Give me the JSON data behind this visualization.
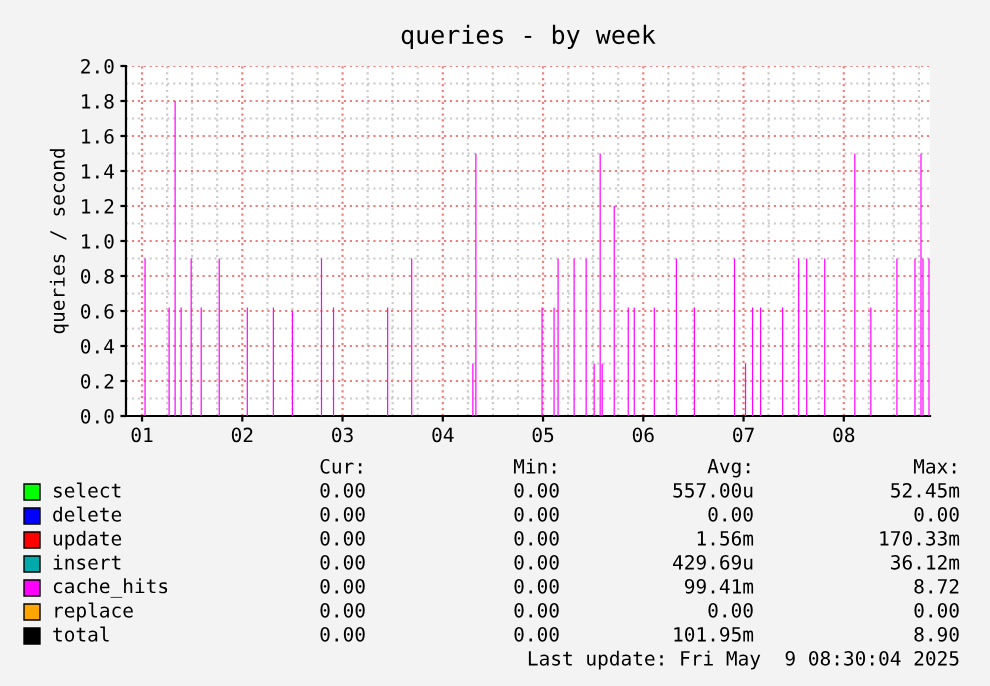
{
  "chart_data": {
    "type": "bar",
    "title": "queries - by week",
    "ylabel": "queries / second",
    "xlim": [
      0.84,
      8.86
    ],
    "xticks": [
      {
        "value": 1,
        "label": "01"
      },
      {
        "value": 2,
        "label": "02"
      },
      {
        "value": 3,
        "label": "03"
      },
      {
        "value": 4,
        "label": "04"
      },
      {
        "value": 5,
        "label": "05"
      },
      {
        "value": 6,
        "label": "06"
      },
      {
        "value": 7,
        "label": "07"
      },
      {
        "value": 8,
        "label": "08"
      }
    ],
    "ylim": [
      0,
      2.0
    ],
    "yticks": [
      {
        "value": 0,
        "label": "0.0"
      },
      {
        "value": 0.2,
        "label": "0.2"
      },
      {
        "value": 0.4,
        "label": "0.4"
      },
      {
        "value": 0.6,
        "label": "0.6"
      },
      {
        "value": 0.8,
        "label": "0.8"
      },
      {
        "value": 1.0,
        "label": "1.0"
      },
      {
        "value": 1.2,
        "label": "1.2"
      },
      {
        "value": 1.4,
        "label": "1.4"
      },
      {
        "value": 1.6,
        "label": "1.6"
      },
      {
        "value": 1.8,
        "label": "1.8"
      },
      {
        "value": 2.0,
        "label": "2.0"
      }
    ],
    "grid": true,
    "legend": "bottom",
    "series": [
      {
        "name": "select",
        "color": "#00ff00"
      },
      {
        "name": "delete",
        "color": "#0000ff"
      },
      {
        "name": "update",
        "color": "#ff0000"
      },
      {
        "name": "insert",
        "color": "#00aaaa"
      },
      {
        "name": "cache_hits",
        "color": "#ff00ff",
        "x": [
          1.03,
          1.27,
          1.33,
          1.39,
          1.49,
          1.59,
          1.77,
          2.05,
          2.31,
          2.5,
          2.79,
          2.91,
          3.45,
          3.69,
          4.3,
          4.33,
          4.99,
          5.11,
          5.15,
          5.31,
          5.43,
          5.51,
          5.57,
          5.59,
          5.71,
          5.85,
          5.91,
          6.11,
          6.33,
          6.51,
          6.91,
          7.02,
          7.09,
          7.17,
          7.39,
          7.55,
          7.63,
          7.81,
          8.11,
          8.27,
          8.53,
          8.71,
          8.77,
          8.79,
          8.85
        ],
        "values": [
          0.9,
          0.62,
          1.8,
          0.62,
          0.9,
          0.62,
          0.9,
          0.62,
          0.62,
          0.6,
          0.9,
          0.62,
          0.62,
          0.9,
          0.3,
          1.5,
          0.62,
          0.62,
          0.9,
          0.9,
          0.9,
          0.3,
          1.5,
          0.3,
          1.2,
          0.62,
          0.62,
          0.62,
          0.9,
          0.62,
          0.9,
          0.3,
          0.62,
          0.62,
          0.62,
          0.9,
          0.9,
          0.9,
          1.5,
          0.62,
          0.9,
          0.9,
          1.5,
          0.9,
          0.9
        ]
      },
      {
        "name": "replace",
        "color": "#ffa500"
      },
      {
        "name": "total",
        "color": "#000000"
      }
    ],
    "annotations": [
      "Cur:",
      "Min:",
      "Avg:",
      "Max:",
      "0.00",
      "0.00",
      "557.00u",
      "52.45m",
      "0.00",
      "0.00",
      "0.00",
      "0.00",
      "0.00",
      "0.00",
      "1.56m",
      "170.33m",
      "0.00",
      "0.00",
      "429.69u",
      "36.12m",
      "0.00",
      "0.00",
      "99.41m",
      "8.72",
      "0.00",
      "0.00",
      "0.00",
      "0.00",
      "0.00",
      "0.00",
      "101.95m",
      "8.90",
      "Last update: Fri May  9 08:30:04 2025"
    ]
  }
}
